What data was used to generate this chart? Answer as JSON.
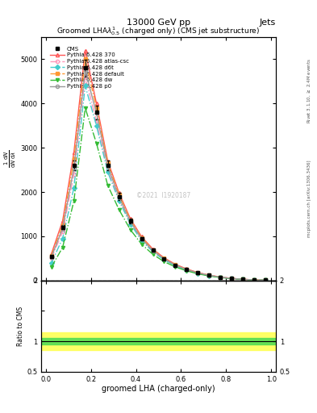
{
  "title_top": "13000 GeV pp",
  "title_right": "Jets",
  "plot_title": "Groomed LHA$\\lambda^{1}_{0.5}$ (charged only) (CMS jet substructure)",
  "xlabel": "groomed LHA (charged-only)",
  "ylabel_main": "$\\frac{1}{\\mathrm{d}N}\\frac{\\mathrm{d}N}{\\mathrm{d}\\lambda}$",
  "ylabel_ratio": "Ratio to CMS",
  "right_label_top": "Rivet 3.1.10, $\\geq$ 2.4M events",
  "right_label_bottom": "mcplots.cern.ch [arXiv:1306.3436]",
  "watermark": "©2021  I1920187",
  "line_colors": [
    "#ff5555",
    "#ff99bb",
    "#44cccc",
    "#ff9933",
    "#33bb33",
    "#999999"
  ],
  "line_styles": [
    "-",
    "-.",
    "-.",
    "-.",
    "-.",
    "-"
  ],
  "line_markers": [
    "^",
    "o",
    "D",
    "s",
    "v",
    "o"
  ],
  "marker_fill": [
    "none",
    "none",
    "full",
    "full",
    "full",
    "none"
  ],
  "legend_labels": [
    "CMS",
    "Pythia 6.428 370",
    "Pythia 6.428 atlas-csc",
    "Pythia 6.428 d6t",
    "Pythia 6.428 default",
    "Pythia 6.428 dw",
    "Pythia 6.428 p0"
  ],
  "x_data": [
    0.025,
    0.075,
    0.125,
    0.175,
    0.225,
    0.275,
    0.325,
    0.375,
    0.425,
    0.475,
    0.525,
    0.575,
    0.625,
    0.675,
    0.725,
    0.775,
    0.825,
    0.875,
    0.925,
    0.975
  ],
  "cms_data": [
    550,
    1200,
    2600,
    4800,
    3800,
    2600,
    1900,
    1350,
    950,
    680,
    490,
    350,
    250,
    170,
    115,
    75,
    45,
    25,
    12,
    5
  ],
  "py370_data": [
    600,
    1350,
    2900,
    5200,
    4000,
    2700,
    1980,
    1400,
    990,
    710,
    510,
    365,
    260,
    178,
    120,
    78,
    47,
    26,
    13,
    5.5
  ],
  "py_atlas_data": [
    500,
    1100,
    2400,
    4600,
    3600,
    2500,
    1830,
    1300,
    920,
    660,
    475,
    340,
    242,
    165,
    111,
    72,
    43,
    24,
    11.5,
    5.0
  ],
  "py_d6t_data": [
    400,
    950,
    2100,
    4400,
    3500,
    2450,
    1800,
    1280,
    900,
    650,
    465,
    333,
    237,
    162,
    109,
    71,
    43,
    23,
    11,
    4.8
  ],
  "py_default_data": [
    560,
    1250,
    2750,
    5000,
    3900,
    2650,
    1940,
    1370,
    965,
    692,
    498,
    356,
    253,
    173,
    116,
    76,
    46,
    25,
    12,
    5.2
  ],
  "py_dw_data": [
    300,
    750,
    1800,
    3900,
    3100,
    2150,
    1600,
    1150,
    820,
    590,
    425,
    305,
    218,
    150,
    101,
    66,
    40,
    22,
    10.5,
    4.5
  ],
  "py_p0_data": [
    530,
    1180,
    2550,
    4750,
    3780,
    2580,
    1885,
    1335,
    942,
    675,
    485,
    347,
    247,
    169,
    114,
    74,
    44,
    24,
    11.5,
    5.0
  ],
  "ylim_main": [
    0,
    5500
  ],
  "ylim_ratio": [
    0.5,
    2.0
  ],
  "yticks_main": [
    0,
    1000,
    2000,
    3000,
    4000,
    5000
  ],
  "ratio_green_band": 0.05,
  "ratio_yellow_band": 0.15,
  "background_color": "#ffffff"
}
